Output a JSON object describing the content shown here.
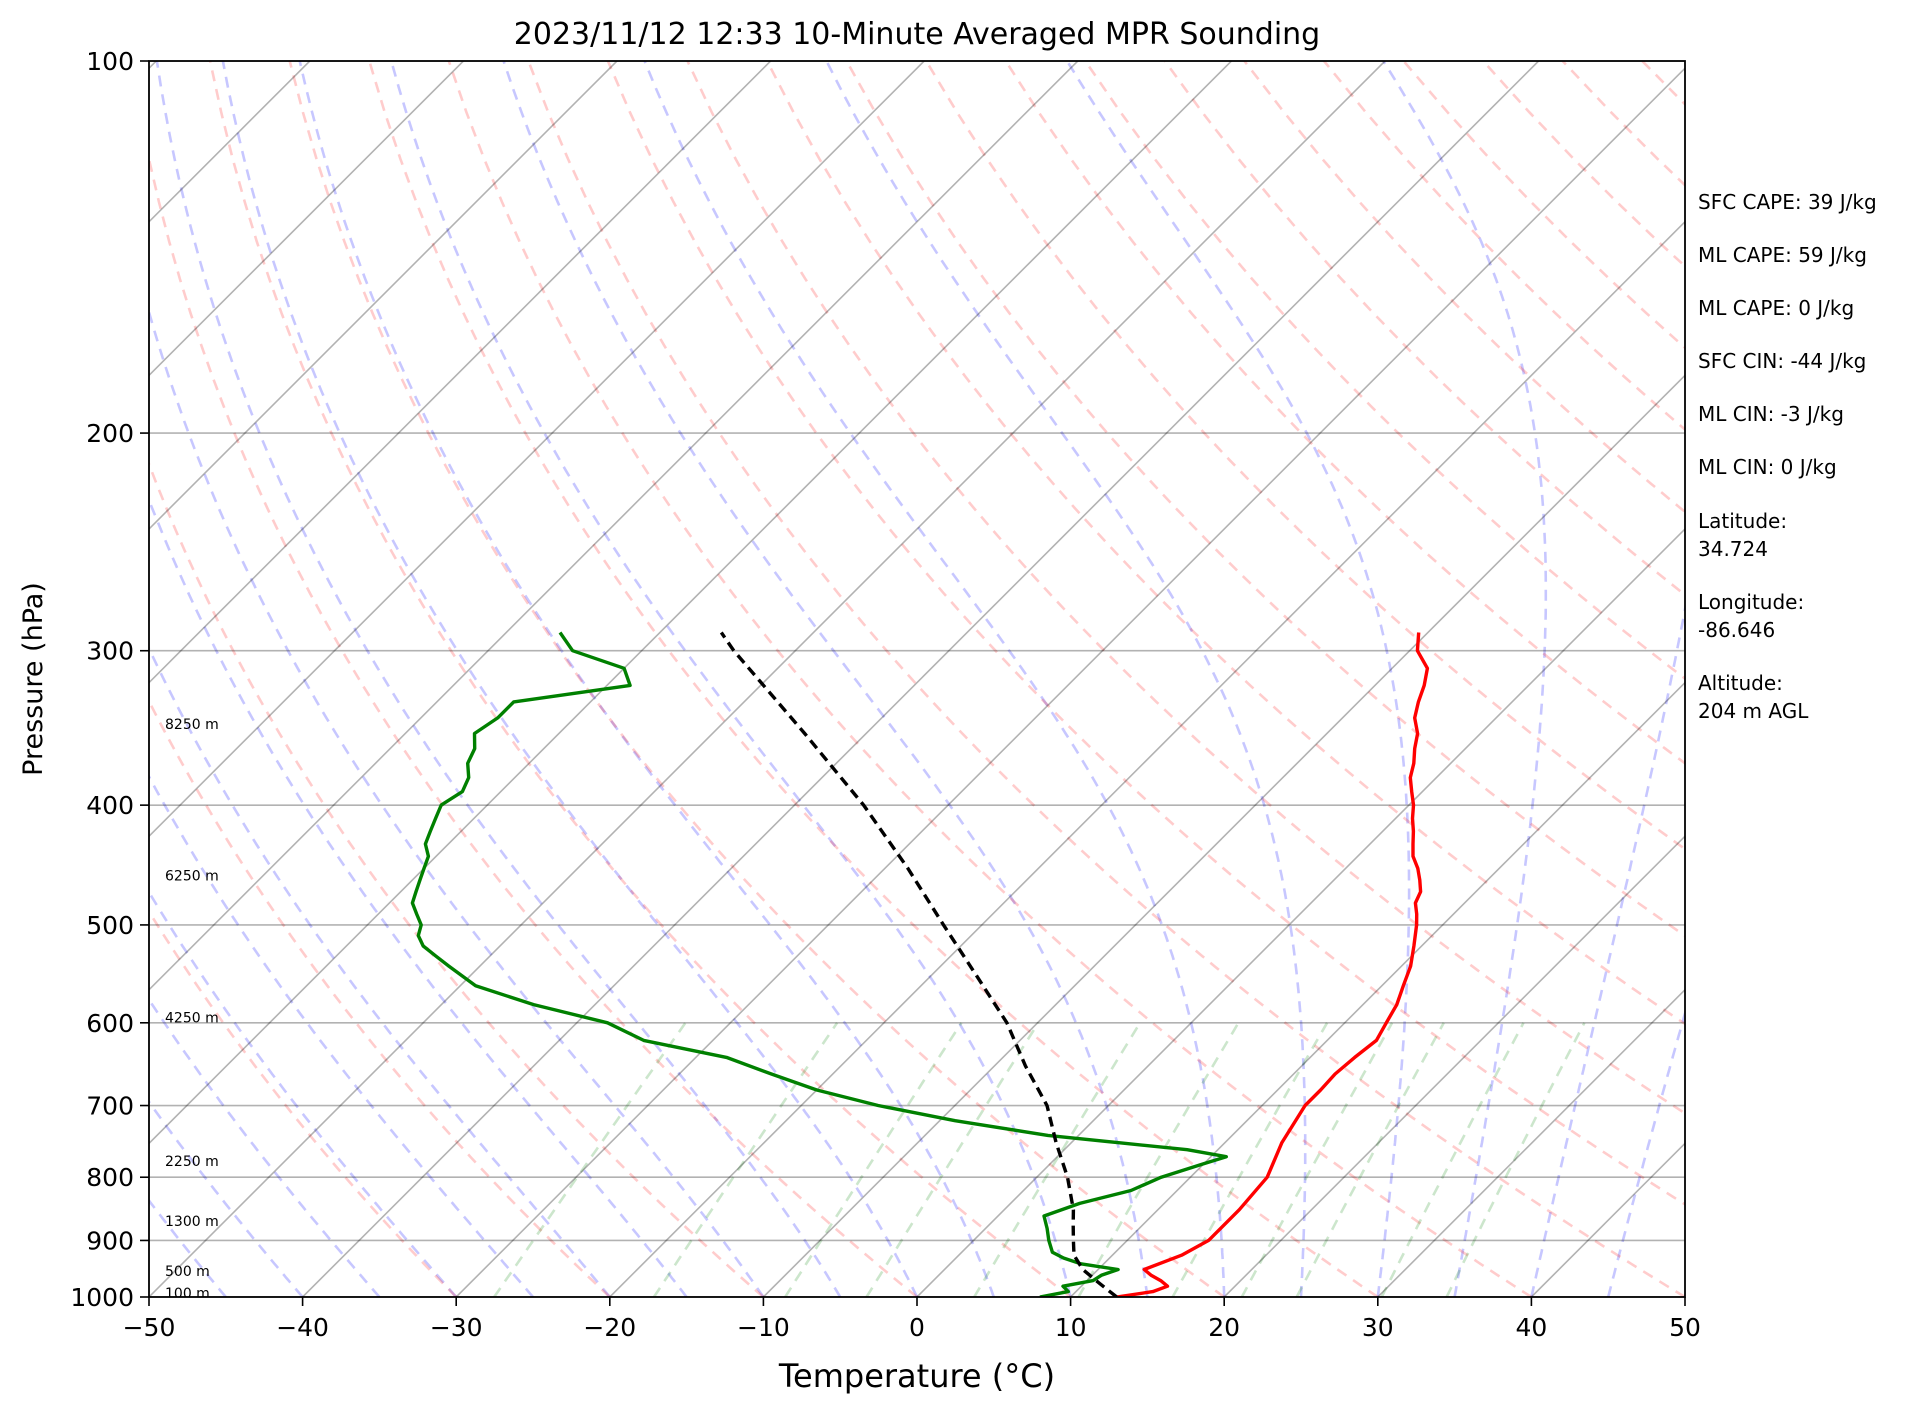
{
  "chart_data": {
    "type": "skewt",
    "title": "2023/11/12 12:33 10-Minute Averaged MPR Sounding",
    "xlabel": "Temperature (°C)",
    "ylabel": "Pressure (hPa)",
    "xlim": [
      -50,
      50
    ],
    "ylim": [
      1000,
      100
    ],
    "y_scale": "log",
    "grid": true,
    "x_ticks": [
      -50,
      -40,
      -30,
      -20,
      -10,
      0,
      10,
      20,
      30,
      40,
      50
    ],
    "x_tick_labels": [
      "−50",
      "−40",
      "−30",
      "−20",
      "−10",
      "0",
      "10",
      "20",
      "30",
      "40",
      "50"
    ],
    "y_ticks": [
      1000,
      900,
      800,
      700,
      600,
      500,
      400,
      300,
      200,
      100
    ],
    "y_tick_labels": [
      "1000",
      "900",
      "800",
      "700",
      "600",
      "500",
      "400",
      "300",
      "200",
      "100"
    ],
    "height_labels": [
      {
        "text": "100 m",
        "p": 993
      },
      {
        "text": "500 m",
        "p": 953
      },
      {
        "text": "1300 m",
        "p": 868
      },
      {
        "text": "2250 m",
        "p": 776
      },
      {
        "text": "4250 m",
        "p": 594
      },
      {
        "text": "6250 m",
        "p": 456
      },
      {
        "text": "8250 m",
        "p": 344
      }
    ],
    "info_lines": [
      "SFC CAPE: 39 J/kg",
      "ML CAPE: 59 J/kg",
      "ML CAPE: 0 J/kg",
      "SFC CIN: -44 J/kg",
      "ML CIN: -3 J/kg",
      "ML CIN: 0 J/kg",
      "Latitude:",
      "34.724",
      "Longitude:",
      "-86.646",
      "Altitude:",
      "204 m AGL"
    ],
    "series": [
      {
        "color": "#ff0000",
        "p": [
          1000,
          990,
          980,
          970,
          960,
          950,
          925,
          900,
          850,
          800,
          750,
          700,
          680,
          660,
          640,
          620,
          600,
          580,
          560,
          540,
          520,
          500,
          490,
          480,
          470,
          460,
          450,
          440,
          430,
          420,
          410,
          400,
          390,
          380,
          370,
          360,
          350,
          340,
          330,
          320,
          310,
          300,
          290
        ],
        "t": [
          13.0,
          15.0,
          15.6,
          14.8,
          13.8,
          13.0,
          14.5,
          15.3,
          15.3,
          15.0,
          13.7,
          12.8,
          12.8,
          12.7,
          12.9,
          13.2,
          12.7,
          12.2,
          11.4,
          10.6,
          9.5,
          8.3,
          7.6,
          6.8,
          6.4,
          5.6,
          4.7,
          3.6,
          2.8,
          2.0,
          1.1,
          0.3,
          -0.7,
          -1.7,
          -2.4,
          -3.3,
          -4.1,
          -5.3,
          -6.1,
          -6.8,
          -7.7,
          -9.5,
          -10.6
        ]
      },
      {
        "color": "#008000",
        "p": [
          1000,
          990,
          980,
          970,
          960,
          950,
          940,
          930,
          920,
          900,
          880,
          860,
          840,
          820,
          800,
          780,
          770,
          760,
          750,
          740,
          720,
          700,
          680,
          660,
          640,
          620,
          600,
          580,
          560,
          540,
          530,
          520,
          510,
          500,
          490,
          480,
          470,
          460,
          450,
          440,
          430,
          420,
          410,
          400,
          390,
          380,
          370,
          360,
          350,
          340,
          330,
          320,
          310,
          300,
          290
        ],
        "t": [
          8.0,
          9.5,
          8.8,
          10.4,
          10.6,
          11.3,
          8.5,
          7.0,
          5.9,
          4.9,
          4.0,
          3.0,
          4.5,
          7.0,
          8.1,
          10.0,
          11.0,
          8.0,
          3.0,
          -2.0,
          -9.0,
          -15.0,
          -20.0,
          -24.0,
          -28.0,
          -34.5,
          -38.0,
          -44.0,
          -49.0,
          -52.0,
          -53.5,
          -55.0,
          -56.0,
          -56.5,
          -57.5,
          -58.5,
          -59.0,
          -59.5,
          -60.0,
          -60.5,
          -61.5,
          -62.0,
          -62.5,
          -63.0,
          -62.5,
          -63.0,
          -64.0,
          -64.5,
          -65.5,
          -65.0,
          -65.0,
          -58.5,
          -60.0,
          -64.5,
          -66.5
        ]
      },
      {
        "color": "#000000",
        "dashed": true,
        "p": [
          1000,
          975,
          950,
          925,
          900,
          875,
          850,
          800,
          750,
          700,
          650,
          600,
          550,
          500,
          450,
          400,
          350,
          300,
          290
        ],
        "t": [
          13.0,
          11.0,
          9.0,
          7.5,
          6.5,
          5.5,
          4.5,
          2.0,
          -1.0,
          -4.0,
          -8.0,
          -12.0,
          -17.0,
          -22.5,
          -28.5,
          -35.5,
          -44.0,
          -54.0,
          -56.0
        ]
      }
    ]
  }
}
